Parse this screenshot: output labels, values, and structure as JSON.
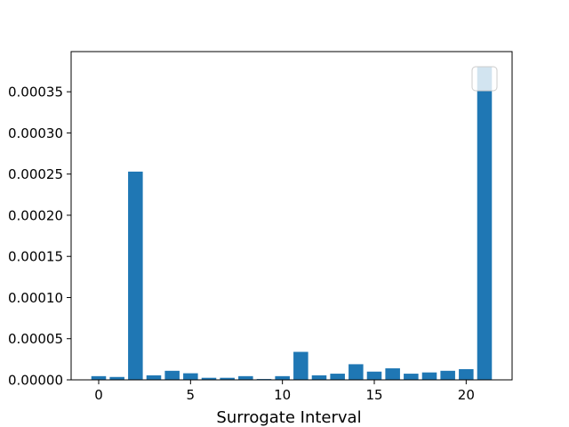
{
  "chart_data": {
    "type": "bar",
    "xlabel": "Surrogate Interval",
    "ylabel": "",
    "title": "",
    "xlim": [
      -1.5,
      22.5
    ],
    "ylim": [
      0,
      0.0003988
    ],
    "x_ticks": [
      0,
      5,
      10,
      15,
      20
    ],
    "y_ticks": [
      0.0,
      5e-05,
      0.0001,
      0.00015,
      0.0002,
      0.00025,
      0.0003,
      0.00035
    ],
    "y_tick_labels": [
      "0.00000",
      "0.00005",
      "0.00010",
      "0.00015",
      "0.00020",
      "0.00025",
      "0.00030",
      "0.00035"
    ],
    "x": [
      0,
      1,
      2,
      3,
      4,
      5,
      6,
      7,
      8,
      9,
      10,
      11,
      12,
      13,
      14,
      15,
      16,
      17,
      18,
      19,
      20,
      21
    ],
    "values": [
      4.5e-06,
      3.5e-06,
      0.000253,
      5.5e-06,
      1.1e-05,
      8e-06,
      2.5e-06,
      2.5e-06,
      4.5e-06,
      1e-06,
      4.5e-06,
      3.4e-05,
      5.5e-06,
      7.5e-06,
      1.9e-05,
      1e-05,
      1.4e-05,
      7.5e-06,
      9e-06,
      1.1e-05,
      1.3e-05,
      0.00038
    ],
    "bar_color": "#1f77b4",
    "legend": {
      "placement": "upper right",
      "entries": []
    }
  }
}
